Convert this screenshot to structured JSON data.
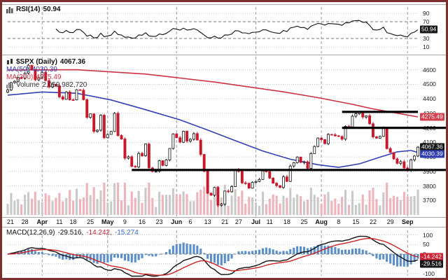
{
  "colors": {
    "border": "#7d2f2f",
    "up": "#ffffff",
    "down": "#c9182c",
    "ma50": "#3340b5",
    "ma200": "#cc3344",
    "vol_up": "#c9c9c9",
    "vol_down": "#efb3bb",
    "hist": "#5b8fc9",
    "macd_line": "#111111",
    "signal": "#cc2222",
    "trend": "#000000"
  },
  "rsi_panel": {
    "legend": {
      "label": "RSI(14)",
      "value": "50.94"
    },
    "ticks": [
      90,
      70,
      30,
      10
    ],
    "badge": {
      "text": "50.94",
      "bg": "#161616",
      "value": 50.94
    }
  },
  "main_panel": {
    "legend": {
      "symbol": "$SPX (Daily)",
      "price": "4067.36",
      "ma50_label": "MA(50)",
      "ma50_value": "4030.39",
      "ma200_label": "MA(200)",
      "ma200_value": "4275.49",
      "volume_label": "Volume",
      "volume_value": "2,059,982,720"
    },
    "ticks": [
      4600,
      4500,
      4400,
      4300,
      4200,
      4100,
      4000,
      3900,
      3800,
      3700
    ],
    "badges": [
      {
        "text": "4275.49",
        "bg": "#d0404e",
        "value": 4275.49
      },
      {
        "text": "4067.36",
        "bg": "#161616",
        "value": 4067.36
      },
      {
        "text": "4030.39",
        "bg": "#2f3db0",
        "value": 4030.39
      }
    ]
  },
  "macd_panel": {
    "legend": {
      "label": "MACD(12,26,9)",
      "v1": "-29.516,",
      "v2": "-14.242,",
      "v3": "-15.274"
    },
    "ticks": [
      100,
      50,
      0,
      -50,
      -100
    ],
    "badges": [
      {
        "text": "-14.242",
        "bg": "#cc2233",
        "value": -14.242
      },
      {
        "text": "-29.516",
        "bg": "#161616",
        "value": -29.516
      }
    ]
  },
  "x_axis": {
    "labels": [
      {
        "t": "21",
        "i": 0
      },
      {
        "t": "28",
        "i": 5
      },
      {
        "t": "Apr",
        "i": 10,
        "b": 1
      },
      {
        "t": "11",
        "i": 15
      },
      {
        "t": "18",
        "i": 19
      },
      {
        "t": "25",
        "i": 24
      },
      {
        "t": "May",
        "i": 29,
        "b": 1
      },
      {
        "t": "9",
        "i": 34
      },
      {
        "t": "16",
        "i": 39
      },
      {
        "t": "23",
        "i": 44
      },
      {
        "t": "Jun",
        "i": 49,
        "b": 1
      },
      {
        "t": "6",
        "i": 53
      },
      {
        "t": "13",
        "i": 58
      },
      {
        "t": "21",
        "i": 63
      },
      {
        "t": "27",
        "i": 67
      },
      {
        "t": "Jul",
        "i": 72,
        "b": 1
      },
      {
        "t": "11",
        "i": 76
      },
      {
        "t": "18",
        "i": 81
      },
      {
        "t": "25",
        "i": 86
      },
      {
        "t": "Aug",
        "i": 91,
        "b": 1
      },
      {
        "t": "8",
        "i": 96
      },
      {
        "t": "15",
        "i": 101
      },
      {
        "t": "22",
        "i": 106
      },
      {
        "t": "29",
        "i": 111
      },
      {
        "t": "Sep",
        "i": 116,
        "b": 1
      }
    ]
  },
  "chart_data": {
    "type": "candlestick",
    "title": "$SPX (Daily)",
    "last_close": 4067.36,
    "ylim": [
      3620,
      4680
    ],
    "closes": [
      4461,
      4511,
      4520,
      4548,
      4543,
      4576,
      4631,
      4602,
      4530,
      4546,
      4582,
      4525,
      4481,
      4500,
      4488,
      4413,
      4397,
      4447,
      4393,
      4392,
      4462,
      4459,
      4394,
      4272,
      4296,
      4175,
      4184,
      4287,
      4132,
      4155,
      4175,
      4300,
      4147,
      4123,
      3991,
      4001,
      3935,
      3930,
      4024,
      4008,
      4089,
      3924,
      3900,
      3901,
      3974,
      3941,
      3979,
      4058,
      4158,
      4132,
      4101,
      4177,
      4109,
      4121,
      4160,
      4116,
      4017,
      3901,
      3750,
      3736,
      3790,
      3667,
      3675,
      3765,
      3760,
      3796,
      3912,
      3900,
      3821,
      3819,
      3785,
      3825,
      3831,
      3845,
      3903,
      3899,
      3854,
      3819,
      3802,
      3790,
      3863,
      3831,
      3937,
      3960,
      3999,
      3962,
      3966,
      3921,
      4023,
      4072,
      4130,
      4119,
      4091,
      4155,
      4152,
      4145,
      4140,
      4122,
      4210,
      4207,
      4280,
      4297,
      4305,
      4274,
      4283,
      4228,
      4138,
      4129,
      4141,
      4199,
      4057,
      4030,
      3986,
      3955,
      3967,
      3924,
      3908,
      3980,
      4006,
      4067.36
    ],
    "ma50_points": [
      [
        0,
        4425
      ],
      [
        10,
        4447
      ],
      [
        20,
        4438
      ],
      [
        30,
        4392
      ],
      [
        40,
        4325
      ],
      [
        50,
        4255
      ],
      [
        58,
        4185
      ],
      [
        66,
        4112
      ],
      [
        74,
        4040
      ],
      [
        82,
        3984
      ],
      [
        90,
        3946
      ],
      [
        96,
        3928
      ],
      [
        102,
        3952
      ],
      [
        108,
        3998
      ],
      [
        113,
        4035
      ],
      [
        117,
        4044
      ],
      [
        119,
        4030.39
      ]
    ],
    "ma200_points": [
      [
        0,
        4598
      ],
      [
        20,
        4600
      ],
      [
        40,
        4570
      ],
      [
        60,
        4515
      ],
      [
        80,
        4448
      ],
      [
        90,
        4408
      ],
      [
        100,
        4362
      ],
      [
        106,
        4330
      ],
      [
        112,
        4305
      ],
      [
        119,
        4275.49
      ]
    ],
    "trendlines": [
      {
        "price": 4310,
        "from": 97,
        "to": 119
      },
      {
        "price": 4200,
        "from": 97,
        "to": "axis"
      },
      {
        "price": 3910,
        "from": 36,
        "to": "axis"
      }
    ],
    "indicators": {
      "rsi": {
        "period": 14,
        "last": 50.94,
        "overbought": 70,
        "oversold": 30
      },
      "macd": {
        "fast": 12,
        "slow": 26,
        "signal": 9,
        "last": [
          -29.516,
          -14.242,
          -15.274
        ]
      },
      "volume_last": "2,059,982,720"
    }
  }
}
